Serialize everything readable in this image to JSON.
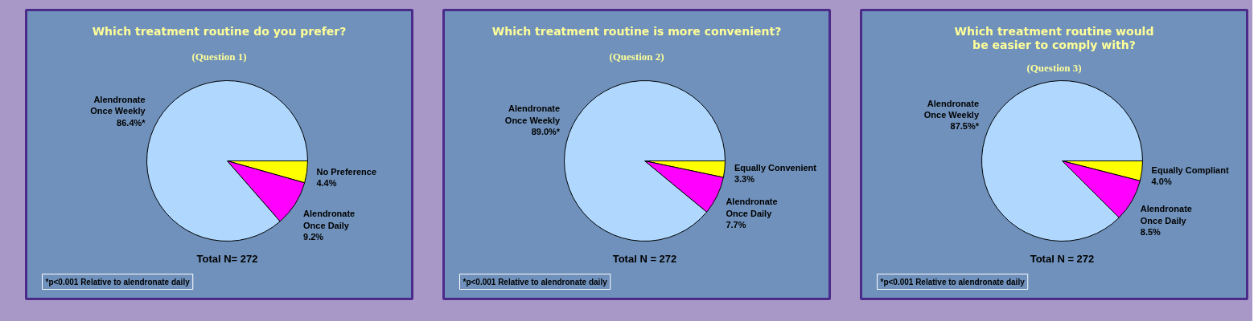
{
  "chart_data": [
    {
      "type": "pie",
      "title": "Which treatment routine do you prefer?",
      "subtitle": "(Question 1)",
      "categories": [
        "No Preference",
        "Alendronate\nOnce Daily",
        "Alendronate\nOnce Weekly"
      ],
      "values": [
        4.4,
        9.2,
        86.4
      ],
      "value_labels": [
        "4.4%",
        "9.2%",
        "86.4%*"
      ],
      "colors": [
        "#ffff00",
        "#ff00ff",
        "#b0d8ff"
      ],
      "annotations": [
        "Total N= 272",
        "*p<0.001 Relative to alendronate daily"
      ]
    },
    {
      "type": "pie",
      "title": "Which treatment routine is more convenient?",
      "subtitle": "(Question 2)",
      "categories": [
        "Equally Convenient",
        "Alendronate\nOnce Daily",
        "Alendronate\nOnce Weekly"
      ],
      "values": [
        3.3,
        7.7,
        89.0
      ],
      "value_labels": [
        "3.3%",
        "7.7%",
        "89.0%*"
      ],
      "colors": [
        "#ffff00",
        "#ff00ff",
        "#b0d8ff"
      ],
      "annotations": [
        "Total N = 272",
        "*p<0.001 Relative to alendronate daily"
      ]
    },
    {
      "type": "pie",
      "title": "Which treatment routine would\nbe easier to comply with?",
      "subtitle": "(Question 3)",
      "categories": [
        "Equally Compliant",
        "Alendronate\nOnce Daily",
        "Alendronate\nOnce Weekly"
      ],
      "values": [
        4.0,
        8.5,
        87.5
      ],
      "value_labels": [
        "4.0%",
        "8.5%",
        "87.5%*"
      ],
      "colors": [
        "#ffff00",
        "#ff00ff",
        "#b0d8ff"
      ],
      "annotations": [
        "Total N = 272",
        "*p<0.001 Relative to alendronate daily"
      ]
    }
  ]
}
